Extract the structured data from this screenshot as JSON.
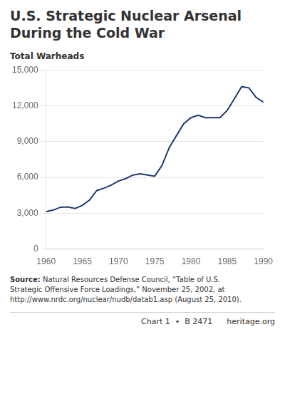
{
  "chart_data": {
    "type": "line",
    "title": [
      "U.S. Strategic Nuclear Arsenal",
      "During the Cold War"
    ],
    "y_label": "Total Warheads",
    "x": [
      1960,
      1961,
      1962,
      1963,
      1964,
      1965,
      1966,
      1967,
      1968,
      1969,
      1970,
      1971,
      1972,
      1973,
      1974,
      1975,
      1976,
      1977,
      1978,
      1979,
      1980,
      1981,
      1982,
      1983,
      1984,
      1985,
      1986,
      1987,
      1988,
      1989,
      1990
    ],
    "values": [
      3127,
      3267,
      3502,
      3525,
      3400,
      3655,
      4100,
      4900,
      5100,
      5350,
      5700,
      5900,
      6200,
      6300,
      6200,
      6100,
      7000,
      8500,
      9500,
      10500,
      11000,
      11200,
      11000,
      11000,
      11000,
      11600,
      12600,
      13600,
      13500,
      12700,
      12304
    ],
    "color": "#1e3a6e",
    "xlim": [
      1960,
      1990
    ],
    "xticks": [
      1960,
      1965,
      1970,
      1975,
      1980,
      1985,
      1990
    ],
    "ylim": [
      0,
      15000
    ],
    "yticks": [
      0,
      {
        "value": 3000,
        "label": "3,000"
      },
      {
        "value": 6000,
        "label": "6,000"
      },
      {
        "value": 9000,
        "label": "9,000"
      },
      {
        "value": 12000,
        "label": "12,000"
      },
      {
        "value": 15000,
        "label": "15,000"
      }
    ],
    "grid": "y",
    "annotations": [
      "Source: Natural Resources Defense Council, “Table of U.S.",
      "Strategic Offensive Force Loadings,” November 25, 2002, at",
      "http://www.nrdc.org/nuclear/nudb/datab1.asp (August 25, 2010).",
      "Chart 1  •  B 2471",
      "heritage.org"
    ]
  }
}
